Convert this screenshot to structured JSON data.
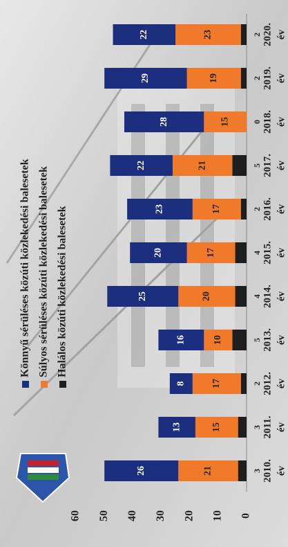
{
  "chart_data": {
    "type": "stacked_bar",
    "categories": [
      "2010.",
      "2011.",
      "2012.",
      "2013.",
      "2014.",
      "2015.",
      "2016.",
      "2017.",
      "2018.",
      "2019.",
      "2020."
    ],
    "category_suffix": "év",
    "series": [
      {
        "name": "Könnyű sérüléses közúti közlekedési balesetek",
        "color": "#1b2f7e",
        "values": [
          26,
          13,
          8,
          16,
          25,
          20,
          23,
          22,
          28,
          29,
          22
        ]
      },
      {
        "name": "Súlyos sérüléses közúti közlekedési balesetek",
        "color": "#f07a2a",
        "values": [
          21,
          15,
          17,
          10,
          20,
          17,
          17,
          21,
          15,
          19,
          23
        ]
      },
      {
        "name": "Halálos közúti közlekedési balesetek",
        "color": "#1e1e1e",
        "values": [
          3,
          3,
          2,
          5,
          4,
          4,
          2,
          5,
          0,
          2,
          2
        ]
      }
    ],
    "ylim": [
      0,
      60
    ],
    "yticks": [
      0,
      10,
      20,
      30,
      40,
      50,
      60
    ],
    "grid": false,
    "legend": "top"
  }
}
